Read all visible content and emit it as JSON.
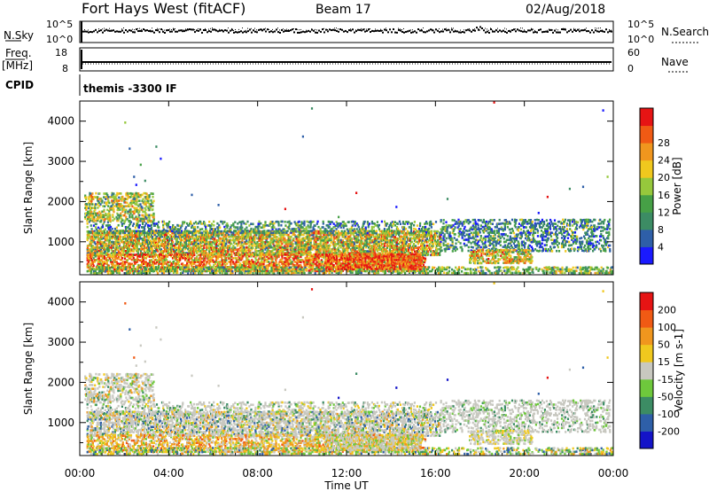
{
  "header": {
    "title": "Fort Hays West (fitACF)",
    "beam": "Beam 17",
    "date": "02/Aug/2018"
  },
  "noise_panel": {
    "left_label": "N.Sky",
    "left_ticks": [
      "10^5",
      "10^0"
    ],
    "right_ticks": [
      "10^5",
      "10^0"
    ],
    "right_label": "N.Search"
  },
  "freq_panel": {
    "left_label_line1": "Freq.",
    "left_label_line2": "[MHz]",
    "left_ticks": [
      "18",
      "8"
    ],
    "right_ticks": [
      "60",
      "0"
    ],
    "right_label": "Nave"
  },
  "cpid": {
    "label": "CPID",
    "value": "themis -3300 IF"
  },
  "x_axis": {
    "label": "Time UT",
    "ticks": [
      "00:00",
      "04:00",
      "08:00",
      "12:00",
      "16:00",
      "20:00",
      "00:00"
    ]
  },
  "colors": {
    "power": [
      "#1a1aff",
      "#2e5fa8",
      "#3c8c64",
      "#46a046",
      "#96c83c",
      "#f0c81e",
      "#f0961e",
      "#f05a14",
      "#e61414"
    ],
    "velocity": [
      "#1414c8",
      "#2e5fa8",
      "#3c8c64",
      "#6ec83c",
      "#c8c8c0",
      "#f0c81e",
      "#f0961e",
      "#f05a14",
      "#e61414"
    ]
  },
  "chart_data": [
    {
      "type": "heatmap",
      "title": "",
      "quantity": "Power",
      "ylabel": "Slant Range [km]",
      "xlabel": "Time UT",
      "xlim": [
        0,
        24
      ],
      "ylim": [
        180,
        4500
      ],
      "yticks": [
        "1000",
        "2000",
        "3000",
        "4000"
      ],
      "colorbar": {
        "label": "Power [dB]",
        "ticks": [
          "4",
          "8",
          "12",
          "16",
          "20",
          "24",
          "28"
        ],
        "range": [
          0,
          32
        ]
      }
    },
    {
      "type": "heatmap",
      "title": "",
      "quantity": "Velocity",
      "ylabel": "Slant Range [km]",
      "xlabel": "Time UT",
      "xlim": [
        0,
        24
      ],
      "ylim": [
        180,
        4500
      ],
      "yticks": [
        "1000",
        "2000",
        "3000",
        "4000"
      ],
      "colorbar": {
        "label": "Velocity [m s-1]",
        "ticks": [
          "200",
          "100",
          "50",
          "15",
          "-15",
          "-50",
          "-100",
          "-200"
        ],
        "range": [
          -250,
          250
        ]
      }
    }
  ]
}
